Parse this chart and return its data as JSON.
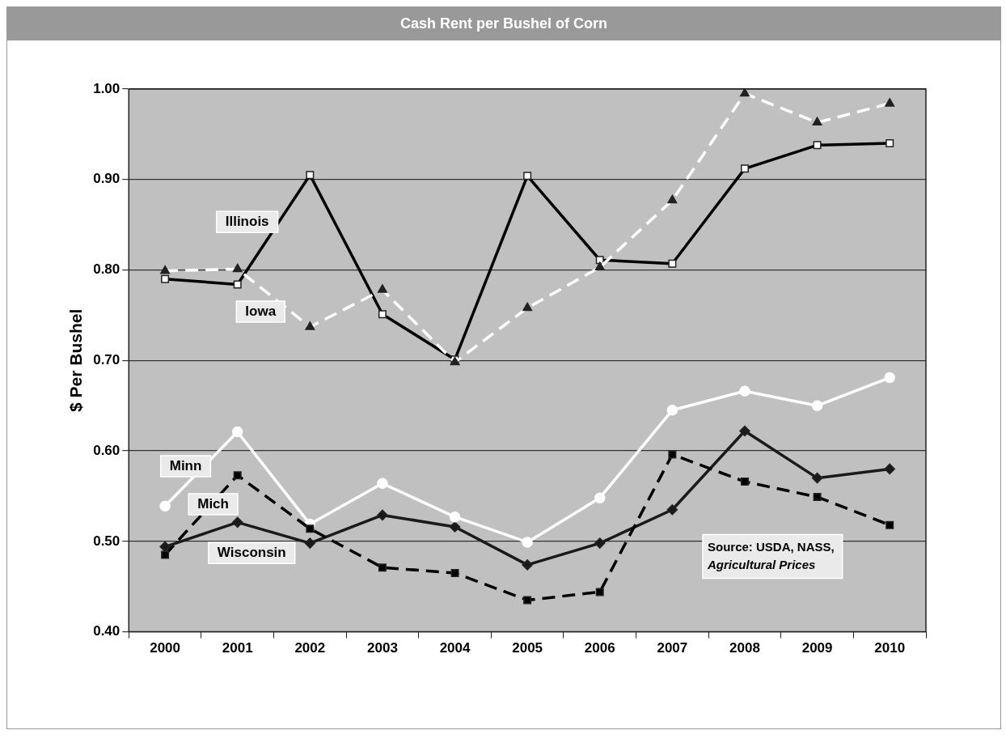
{
  "chart_data": {
    "type": "line",
    "title": "Cash Rent per Bushel of Corn",
    "ylabel": "$ Per Bushel",
    "categories": [
      "2000",
      "2001",
      "2002",
      "2003",
      "2004",
      "2005",
      "2006",
      "2007",
      "2008",
      "2009",
      "2010"
    ],
    "series": [
      {
        "name": "Illinois",
        "color": "#000000",
        "marker": "square",
        "line_style": "solid",
        "values": [
          0.79,
          0.784,
          0.905,
          0.751,
          0.701,
          0.904,
          0.811,
          0.807,
          0.912,
          0.938,
          0.94
        ]
      },
      {
        "name": "Iowa",
        "color": "#ffffff",
        "marker": "triangle",
        "line_style": "dashed",
        "values": [
          0.799,
          0.801,
          0.737,
          0.778,
          0.698,
          0.758,
          0.803,
          0.877,
          0.995,
          0.963,
          0.984
        ]
      },
      {
        "name": "Minn",
        "color": "#ffffff",
        "marker": "circle",
        "line_style": "solid",
        "values": [
          0.539,
          0.621,
          0.519,
          0.564,
          0.527,
          0.499,
          0.548,
          0.645,
          0.666,
          0.65,
          0.681
        ]
      },
      {
        "name": "Mich",
        "color": "#000000",
        "marker": "square",
        "line_style": "dashed",
        "values": [
          0.485,
          0.573,
          0.514,
          0.471,
          0.465,
          0.435,
          0.444,
          0.596,
          0.566,
          0.549,
          0.518
        ]
      },
      {
        "name": "Wisconsin",
        "color": "#1a1a1a",
        "marker": "diamond",
        "line_style": "solid",
        "values": [
          0.494,
          0.521,
          0.498,
          0.529,
          0.516,
          0.474,
          0.498,
          0.535,
          0.622,
          0.57,
          0.58
        ]
      }
    ],
    "ylim": [
      0.4,
      1.0
    ],
    "yticks": [
      {
        "value": 0.4,
        "label": "0.40"
      },
      {
        "value": 0.5,
        "label": "0.50"
      },
      {
        "value": 0.6,
        "label": "0.60"
      },
      {
        "value": 0.7,
        "label": "0.70"
      },
      {
        "value": 0.8,
        "label": "0.80"
      },
      {
        "value": 0.9,
        "label": "0.90"
      },
      {
        "value": 1.0,
        "label": "1.00"
      }
    ],
    "grid": "y",
    "legend": false,
    "annotations": [
      "Source: USDA, NASS,",
      "Agricultural Prices"
    ]
  }
}
